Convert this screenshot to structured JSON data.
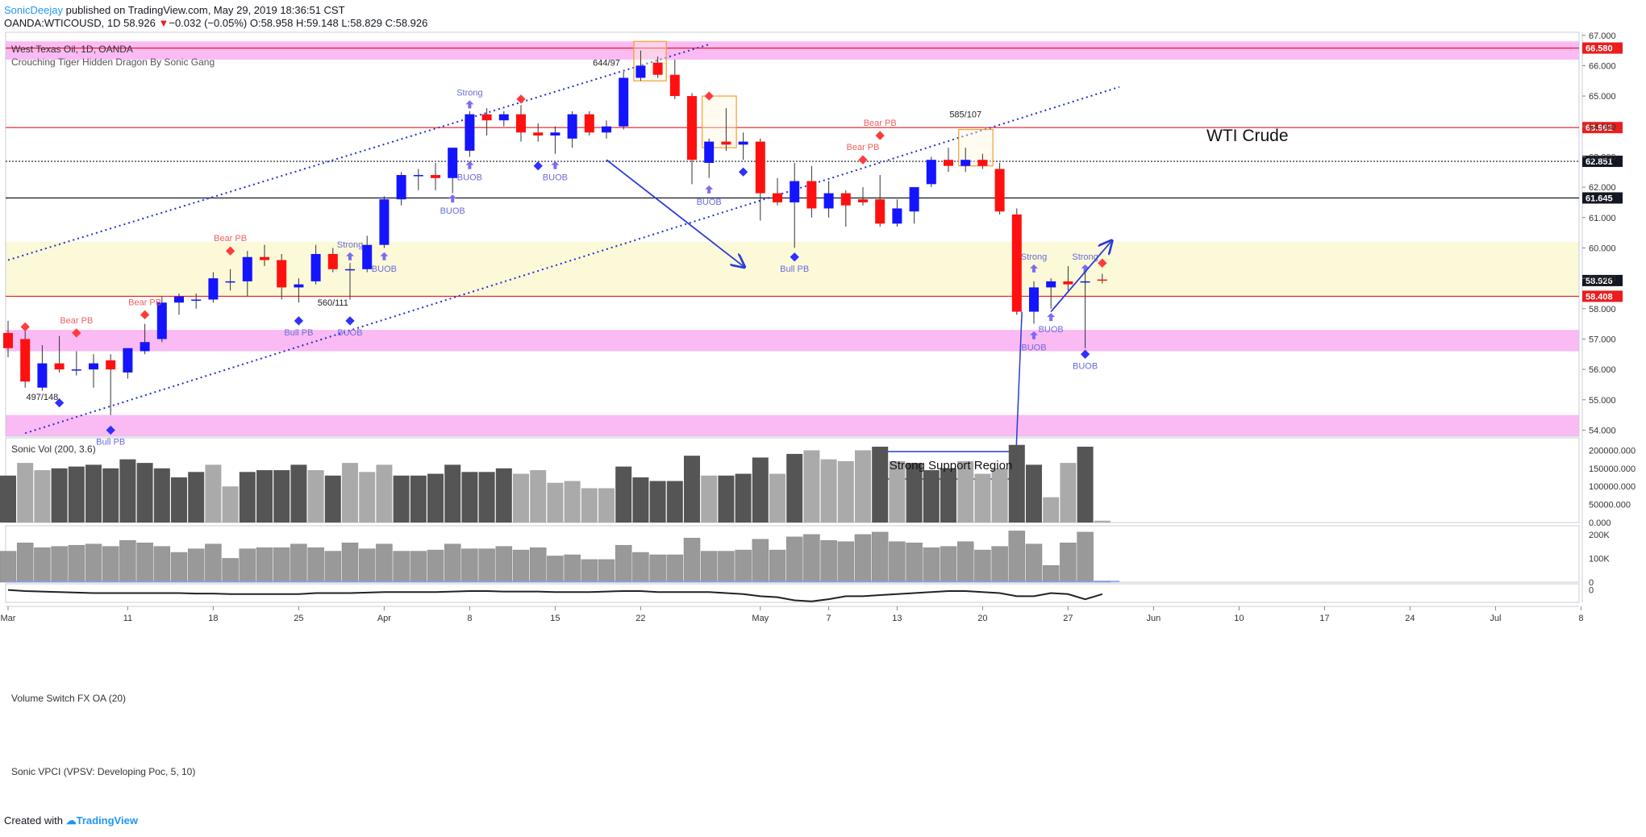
{
  "header": {
    "author": "SonicDeejay",
    "published": " published on TradingView.com, May 29, 2019 18:36:51 CST",
    "symbol": "OANDA:WTICOUSD, 1D",
    "last": "58.926",
    "change": "−0.032 (−0.05%)",
    "open": "O:58.958",
    "high": "H:59.148",
    "low": "L:58.829",
    "close": "C:58.926"
  },
  "footer": {
    "created_with": "Created with",
    "brand": "TradingView"
  },
  "chart_data": {
    "type": "candlestick",
    "title": "West Texas Oil, 1D, OANDA",
    "indicator_label": "Crouching Tiger Hidden Dragon By Sonic Gang",
    "annotation_title": "WTI Crude",
    "callout": "Strong Support Region",
    "ylim": [
      53.8,
      67.1
    ],
    "y_ticks": [
      54,
      55,
      56,
      57,
      58,
      59,
      60,
      61,
      62,
      63,
      64,
      65,
      66,
      67
    ],
    "y_tick_labels": [
      "54.000",
      "55.000",
      "56.000",
      "57.000",
      "58.000",
      "59.000",
      "60.000",
      "61.000",
      "62.000",
      "63.000",
      "64.000",
      "65.000",
      "66.000",
      "67.000"
    ],
    "x_ticks": [
      {
        "label": "Mar",
        "slot": 0
      },
      {
        "label": "11",
        "slot": 7
      },
      {
        "label": "18",
        "slot": 12
      },
      {
        "label": "25",
        "slot": 17
      },
      {
        "label": "Apr",
        "slot": 22
      },
      {
        "label": "8",
        "slot": 27
      },
      {
        "label": "15",
        "slot": 32
      },
      {
        "label": "22",
        "slot": 37
      },
      {
        "label": "May",
        "slot": 44
      },
      {
        "label": "7",
        "slot": 48
      },
      {
        "label": "13",
        "slot": 52
      },
      {
        "label": "20",
        "slot": 57
      },
      {
        "label": "27",
        "slot": 62
      },
      {
        "label": "Jun",
        "slot": 67
      },
      {
        "label": "10",
        "slot": 72
      },
      {
        "label": "17",
        "slot": 77
      },
      {
        "label": "24",
        "slot": 82
      },
      {
        "label": "Jul",
        "slot": 87
      },
      {
        "label": "8",
        "slot": 92
      }
    ],
    "ohlc": [
      {
        "slot": 0,
        "o": 57.2,
        "h": 57.6,
        "l": 56.4,
        "c": 56.7
      },
      {
        "slot": 1,
        "o": 57.0,
        "h": 57.3,
        "l": 55.4,
        "c": 55.6
      },
      {
        "slot": 2,
        "o": 55.4,
        "h": 56.8,
        "l": 55.3,
        "c": 56.2
      },
      {
        "slot": 3,
        "o": 56.2,
        "h": 57.1,
        "l": 55.9,
        "c": 56.0
      },
      {
        "slot": 4,
        "o": 56.0,
        "h": 56.6,
        "l": 55.8,
        "c": 56.0
      },
      {
        "slot": 5,
        "o": 56.0,
        "h": 56.5,
        "l": 55.4,
        "c": 56.2
      },
      {
        "slot": 6,
        "o": 56.3,
        "h": 56.5,
        "l": 54.5,
        "c": 56.0
      },
      {
        "slot": 7,
        "o": 55.9,
        "h": 56.7,
        "l": 55.7,
        "c": 56.7
      },
      {
        "slot": 8,
        "o": 56.6,
        "h": 57.5,
        "l": 56.5,
        "c": 56.9
      },
      {
        "slot": 9,
        "o": 57.0,
        "h": 58.4,
        "l": 56.9,
        "c": 58.2
      },
      {
        "slot": 10,
        "o": 58.2,
        "h": 58.5,
        "l": 57.8,
        "c": 58.4
      },
      {
        "slot": 11,
        "o": 58.3,
        "h": 58.5,
        "l": 58.0,
        "c": 58.3
      },
      {
        "slot": 12,
        "o": 58.3,
        "h": 59.2,
        "l": 58.2,
        "c": 59.0
      },
      {
        "slot": 13,
        "o": 58.9,
        "h": 59.3,
        "l": 58.6,
        "c": 58.9
      },
      {
        "slot": 14,
        "o": 58.9,
        "h": 59.9,
        "l": 58.4,
        "c": 59.7
      },
      {
        "slot": 15,
        "o": 59.7,
        "h": 60.1,
        "l": 59.4,
        "c": 59.6
      },
      {
        "slot": 16,
        "o": 59.6,
        "h": 59.8,
        "l": 58.3,
        "c": 58.7
      },
      {
        "slot": 17,
        "o": 58.7,
        "h": 59.0,
        "l": 58.2,
        "c": 58.8
      },
      {
        "slot": 18,
        "o": 58.9,
        "h": 60.1,
        "l": 58.8,
        "c": 59.8
      },
      {
        "slot": 19,
        "o": 59.8,
        "h": 60.0,
        "l": 59.2,
        "c": 59.3
      },
      {
        "slot": 20,
        "o": 59.3,
        "h": 59.5,
        "l": 58.3,
        "c": 59.3
      },
      {
        "slot": 21,
        "o": 59.3,
        "h": 60.4,
        "l": 59.2,
        "c": 60.1
      },
      {
        "slot": 22,
        "o": 60.1,
        "h": 61.7,
        "l": 60.0,
        "c": 61.6
      },
      {
        "slot": 23,
        "o": 61.6,
        "h": 62.5,
        "l": 61.4,
        "c": 62.4
      },
      {
        "slot": 24,
        "o": 62.4,
        "h": 62.6,
        "l": 61.9,
        "c": 62.4
      },
      {
        "slot": 25,
        "o": 62.4,
        "h": 62.8,
        "l": 61.9,
        "c": 62.3
      },
      {
        "slot": 26,
        "o": 62.3,
        "h": 63.3,
        "l": 61.8,
        "c": 63.3
      },
      {
        "slot": 27,
        "o": 63.2,
        "h": 64.5,
        "l": 63.0,
        "c": 64.4
      },
      {
        "slot": 28,
        "o": 64.4,
        "h": 64.6,
        "l": 63.7,
        "c": 64.2
      },
      {
        "slot": 29,
        "o": 64.2,
        "h": 64.5,
        "l": 64.0,
        "c": 64.4
      },
      {
        "slot": 30,
        "o": 64.4,
        "h": 64.7,
        "l": 63.5,
        "c": 63.8
      },
      {
        "slot": 31,
        "o": 63.8,
        "h": 64.1,
        "l": 63.5,
        "c": 63.7
      },
      {
        "slot": 32,
        "o": 63.7,
        "h": 64.0,
        "l": 63.1,
        "c": 63.8
      },
      {
        "slot": 33,
        "o": 63.6,
        "h": 64.5,
        "l": 63.3,
        "c": 64.4
      },
      {
        "slot": 34,
        "o": 64.4,
        "h": 64.5,
        "l": 63.7,
        "c": 63.8
      },
      {
        "slot": 35,
        "o": 63.8,
        "h": 64.2,
        "l": 63.6,
        "c": 64.0
      },
      {
        "slot": 36,
        "o": 64.0,
        "h": 65.8,
        "l": 63.9,
        "c": 65.6
      },
      {
        "slot": 37,
        "o": 65.6,
        "h": 66.5,
        "l": 65.5,
        "c": 66.0
      },
      {
        "slot": 38,
        "o": 66.1,
        "h": 66.3,
        "l": 65.6,
        "c": 65.7
      },
      {
        "slot": 39,
        "o": 65.7,
        "h": 66.2,
        "l": 64.9,
        "c": 65.0
      },
      {
        "slot": 40,
        "o": 65.0,
        "h": 65.1,
        "l": 62.1,
        "c": 62.9
      },
      {
        "slot": 41,
        "o": 62.8,
        "h": 63.6,
        "l": 62.3,
        "c": 63.5
      },
      {
        "slot": 42,
        "o": 63.5,
        "h": 64.6,
        "l": 63.2,
        "c": 63.4
      },
      {
        "slot": 43,
        "o": 63.4,
        "h": 63.8,
        "l": 62.9,
        "c": 63.5
      },
      {
        "slot": 44,
        "o": 63.5,
        "h": 63.6,
        "l": 60.9,
        "c": 61.8
      },
      {
        "slot": 45,
        "o": 61.8,
        "h": 62.3,
        "l": 61.4,
        "c": 61.5
      },
      {
        "slot": 46,
        "o": 61.5,
        "h": 62.8,
        "l": 60.0,
        "c": 62.2
      },
      {
        "slot": 47,
        "o": 62.2,
        "h": 62.7,
        "l": 61.0,
        "c": 61.3
      },
      {
        "slot": 48,
        "o": 61.3,
        "h": 62.2,
        "l": 61.0,
        "c": 61.8
      },
      {
        "slot": 49,
        "o": 61.8,
        "h": 61.9,
        "l": 60.7,
        "c": 61.4
      },
      {
        "slot": 50,
        "o": 61.6,
        "h": 62.0,
        "l": 61.4,
        "c": 61.5
      },
      {
        "slot": 51,
        "o": 61.6,
        "h": 62.4,
        "l": 60.7,
        "c": 60.8
      },
      {
        "slot": 52,
        "o": 60.8,
        "h": 61.6,
        "l": 60.7,
        "c": 61.3
      },
      {
        "slot": 53,
        "o": 61.2,
        "h": 62.0,
        "l": 60.8,
        "c": 62.0
      },
      {
        "slot": 54,
        "o": 62.1,
        "h": 63.0,
        "l": 62.0,
        "c": 62.9
      },
      {
        "slot": 55,
        "o": 62.9,
        "h": 63.3,
        "l": 62.5,
        "c": 62.7
      },
      {
        "slot": 56,
        "o": 62.7,
        "h": 63.3,
        "l": 62.5,
        "c": 62.9
      },
      {
        "slot": 57,
        "o": 62.9,
        "h": 63.1,
        "l": 62.6,
        "c": 62.7
      },
      {
        "slot": 58,
        "o": 62.6,
        "h": 62.8,
        "l": 61.1,
        "c": 61.2
      },
      {
        "slot": 59,
        "o": 61.1,
        "h": 61.3,
        "l": 57.8,
        "c": 57.9
      },
      {
        "slot": 60,
        "o": 57.9,
        "h": 58.9,
        "l": 57.5,
        "c": 58.7
      },
      {
        "slot": 61,
        "o": 58.7,
        "h": 59.0,
        "l": 58.0,
        "c": 58.9
      },
      {
        "slot": 62,
        "o": 58.9,
        "h": 59.4,
        "l": 58.6,
        "c": 58.8
      },
      {
        "slot": 63,
        "o": 58.9,
        "h": 59.2,
        "l": 56.7,
        "c": 58.9
      },
      {
        "slot": 64,
        "o": 58.96,
        "h": 59.15,
        "l": 58.83,
        "c": 58.93
      }
    ],
    "price_lines": [
      {
        "value": 66.58,
        "label": "66.580",
        "style": "red",
        "band": [
          66.2,
          66.8
        ]
      },
      {
        "value": 63.962,
        "label": "63.962",
        "style": "red"
      },
      {
        "value": 62.851,
        "label": "62.851",
        "style": "black-dotted"
      },
      {
        "value": 61.645,
        "label": "61.645",
        "style": "black"
      },
      {
        "value": 58.926,
        "label": "58.926",
        "style": "last"
      },
      {
        "value": 58.408,
        "label": "58.408",
        "style": "red"
      }
    ],
    "zones": [
      {
        "from": 66.2,
        "to": 66.8,
        "color": "#f9b3f3"
      },
      {
        "from": 56.6,
        "to": 57.3,
        "color": "#f9b3f3"
      },
      {
        "from": 53.8,
        "to": 54.5,
        "color": "#f9b3f3"
      },
      {
        "from": 58.4,
        "to": 60.2,
        "color": "#fbf8d4"
      }
    ],
    "channel_upper": [
      {
        "slot": 0,
        "y": 59.6
      },
      {
        "slot": 41,
        "y": 66.7
      }
    ],
    "channel_lower": [
      {
        "slot": 1,
        "y": 53.9
      },
      {
        "slot": 65,
        "y": 65.3
      }
    ],
    "signals": [
      {
        "slot": 1,
        "y": 57.4,
        "kind": "bear",
        "text": ""
      },
      {
        "slot": 4,
        "y": 57.2,
        "kind": "bear",
        "text": "Bear PB"
      },
      {
        "slot": 3,
        "y": 54.9,
        "kind": "bull",
        "text": ""
      },
      {
        "slot": 6,
        "y": 54.0,
        "kind": "bull",
        "text": "Bull PB"
      },
      {
        "slot": 8,
        "y": 57.8,
        "kind": "bear",
        "text": "Bear PB"
      },
      {
        "slot": 13,
        "y": 59.9,
        "kind": "bear",
        "text": "Bear PB"
      },
      {
        "slot": 17,
        "y": 57.6,
        "kind": "bull",
        "text": "Bull PB"
      },
      {
        "slot": 20,
        "y": 57.6,
        "kind": "bull",
        "text": "BUOB"
      },
      {
        "slot": 20,
        "y": 59.7,
        "kind": "up",
        "text": "Strong"
      },
      {
        "slot": 22,
        "y": 59.7,
        "kind": "up",
        "text": "BUOB"
      },
      {
        "slot": 26,
        "y": 61.6,
        "kind": "up",
        "text": "BUOB"
      },
      {
        "slot": 27,
        "y": 62.7,
        "kind": "up",
        "text": "BUOB"
      },
      {
        "slot": 27,
        "y": 64.7,
        "kind": "up",
        "text": "Strong"
      },
      {
        "slot": 30,
        "y": 64.9,
        "kind": "bear",
        "text": ""
      },
      {
        "slot": 31,
        "y": 62.7,
        "kind": "bull",
        "text": ""
      },
      {
        "slot": 32,
        "y": 62.7,
        "kind": "up",
        "text": "BUOB"
      },
      {
        "slot": 41,
        "y": 65.0,
        "kind": "bear",
        "text": ""
      },
      {
        "slot": 41,
        "y": 61.9,
        "kind": "up",
        "text": "BUOB"
      },
      {
        "slot": 43,
        "y": 62.5,
        "kind": "bull",
        "text": ""
      },
      {
        "slot": 46,
        "y": 59.7,
        "kind": "bull",
        "text": "Bull PB"
      },
      {
        "slot": 50,
        "y": 62.9,
        "kind": "bear",
        "text": "Bear PB"
      },
      {
        "slot": 51,
        "y": 63.7,
        "kind": "bear",
        "text": "Bear PB"
      },
      {
        "slot": 60,
        "y": 59.3,
        "kind": "up",
        "text": "Strong"
      },
      {
        "slot": 60,
        "y": 57.1,
        "kind": "up",
        "text": "BUOB"
      },
      {
        "slot": 61,
        "y": 57.7,
        "kind": "up",
        "text": "BUOB"
      },
      {
        "slot": 63,
        "y": 59.3,
        "kind": "up",
        "text": "Strong"
      },
      {
        "slot": 64,
        "y": 59.5,
        "kind": "bear",
        "text": ""
      },
      {
        "slot": 63,
        "y": 56.5,
        "kind": "bull",
        "text": "BUOB"
      }
    ],
    "labels": [
      {
        "slot": 2,
        "y": 55.0,
        "text": "497/148"
      },
      {
        "slot": 19,
        "y": 58.1,
        "text": "560/111"
      },
      {
        "slot": 35,
        "y": 66.0,
        "text": "644/97"
      },
      {
        "slot": 56,
        "y": 64.3,
        "text": "585/107"
      }
    ],
    "boxes": [
      {
        "slot_from": 36.6,
        "slot_to": 38.5,
        "top": 66.8,
        "bottom": 65.5
      },
      {
        "slot_from": 40.6,
        "slot_to": 42.6,
        "top": 65.0,
        "bottom": 63.3
      },
      {
        "slot_from": 55.6,
        "slot_to": 57.6,
        "top": 63.9,
        "bottom": 62.7
      }
    ],
    "arrows": [
      {
        "from": {
          "slot": 35,
          "y": 62.9
        },
        "to": {
          "slot": 43,
          "y": 59.4
        }
      },
      {
        "from": {
          "slot": 61,
          "y": 57.9
        },
        "to": {
          "slot": 64.5,
          "y": 60.2
        }
      }
    ],
    "volume": {
      "title": "Sonic Vol (200, 3.6)",
      "ylim": [
        0,
        230000
      ],
      "y_ticks": [
        0,
        50000,
        100000,
        150000,
        200000
      ],
      "y_tick_labels": [
        "0.000",
        "50000.000",
        "100000.000",
        "150000.000",
        "200000.000"
      ],
      "values": [
        130000,
        165000,
        145000,
        150000,
        155000,
        160000,
        150000,
        175000,
        165000,
        150000,
        125000,
        140000,
        160000,
        100000,
        140000,
        145000,
        145000,
        160000,
        145000,
        130000,
        165000,
        140000,
        160000,
        130000,
        130000,
        135000,
        160000,
        140000,
        140000,
        150000,
        135000,
        145000,
        110000,
        115000,
        95000,
        95000,
        155000,
        125000,
        115000,
        115000,
        185000,
        130000,
        130000,
        135000,
        180000,
        135000,
        190000,
        200000,
        175000,
        170000,
        200000,
        210000,
        170000,
        165000,
        145000,
        150000,
        170000,
        135000,
        150000,
        215000,
        160000,
        70000,
        165000,
        210000,
        5000
      ],
      "shades": [
        "d",
        "l",
        "l",
        "d",
        "d",
        "d",
        "d",
        "d",
        "d",
        "d",
        "d",
        "d",
        "l",
        "l",
        "d",
        "d",
        "d",
        "d",
        "l",
        "d",
        "l",
        "l",
        "l",
        "d",
        "d",
        "d",
        "d",
        "d",
        "d",
        "d",
        "l",
        "l",
        "l",
        "l",
        "l",
        "l",
        "d",
        "d",
        "d",
        "d",
        "d",
        "l",
        "d",
        "d",
        "d",
        "l",
        "d",
        "l",
        "l",
        "l",
        "l",
        "d",
        "l",
        "d",
        "d",
        "d",
        "l",
        "l",
        "l",
        "d",
        "d",
        "l",
        "l",
        "d",
        "l"
      ]
    },
    "switch": {
      "title": "Volume Switch FX OA (20)",
      "ylim": [
        0,
        230000
      ],
      "y_ticks": [
        0,
        100000,
        200000
      ],
      "y_tick_labels": [
        "0",
        "100K",
        "200K"
      ],
      "values": [
        130000,
        165000,
        145000,
        150000,
        155000,
        160000,
        150000,
        175000,
        165000,
        150000,
        125000,
        140000,
        160000,
        100000,
        140000,
        145000,
        145000,
        160000,
        145000,
        130000,
        165000,
        140000,
        160000,
        130000,
        130000,
        135000,
        160000,
        140000,
        140000,
        150000,
        135000,
        145000,
        110000,
        115000,
        95000,
        95000,
        155000,
        125000,
        115000,
        115000,
        185000,
        130000,
        130000,
        135000,
        180000,
        135000,
        190000,
        200000,
        175000,
        170000,
        200000,
        210000,
        170000,
        165000,
        145000,
        150000,
        170000,
        135000,
        150000,
        215000,
        160000,
        70000,
        165000,
        210000,
        5000
      ]
    },
    "vpci": {
      "title": "Sonic VPCI (VPSV: Developing Poc, 5, 10)",
      "y_ticks": [
        0
      ],
      "y_tick_labels": [
        "0"
      ],
      "ylim": [
        -1.2,
        0.6
      ],
      "values": [
        0.0,
        -0.1,
        -0.15,
        -0.2,
        -0.25,
        -0.3,
        -0.3,
        -0.3,
        -0.3,
        -0.3,
        -0.3,
        -0.35,
        -0.35,
        -0.4,
        -0.4,
        -0.4,
        -0.4,
        -0.4,
        -0.3,
        -0.3,
        -0.3,
        -0.25,
        -0.2,
        -0.2,
        -0.2,
        -0.2,
        -0.15,
        -0.1,
        -0.1,
        -0.15,
        -0.15,
        -0.15,
        -0.2,
        -0.2,
        -0.2,
        -0.15,
        -0.1,
        -0.1,
        -0.2,
        -0.2,
        -0.2,
        -0.2,
        -0.3,
        -0.4,
        -0.6,
        -0.7,
        -1.0,
        -1.1,
        -0.9,
        -0.6,
        -0.6,
        -0.5,
        -0.4,
        -0.3,
        -0.2,
        -0.1,
        -0.1,
        -0.2,
        -0.3,
        -0.6,
        -0.6,
        -0.3,
        -0.4,
        -0.9,
        -0.4
      ]
    }
  }
}
